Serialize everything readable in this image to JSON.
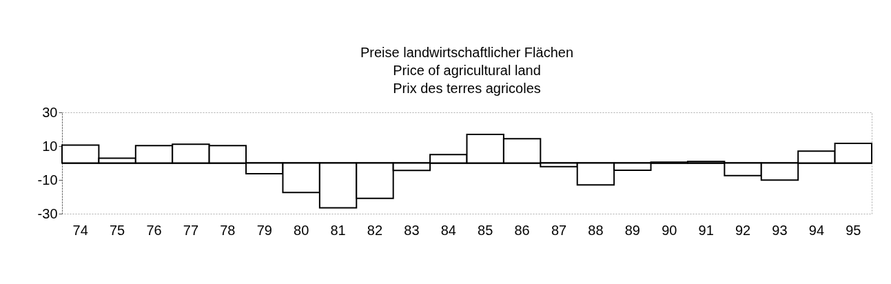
{
  "chart_data": {
    "type": "bar",
    "title": "Preise landwirtschaftlicher Flächen\nPrice of agricultural land\nPrix des terres agricoles",
    "categories": [
      "74",
      "75",
      "76",
      "77",
      "78",
      "79",
      "80",
      "81",
      "82",
      "83",
      "84",
      "85",
      "86",
      "87",
      "88",
      "89",
      "90",
      "91",
      "92",
      "93",
      "94",
      "95"
    ],
    "values": [
      10.6,
      2.9,
      10.3,
      11.1,
      10.3,
      -6.3,
      -17.4,
      -26.5,
      -20.9,
      -4.4,
      5.0,
      16.9,
      14.4,
      -2.1,
      -13.0,
      -4.3,
      0.5,
      0.9,
      -7.4,
      -10.1,
      7.0,
      11.6
    ],
    "color": "#ffffff",
    "ylim": [
      -30,
      30
    ],
    "yticks": [
      30,
      10,
      -10,
      -30
    ],
    "ref_lines": [
      {
        "axis": "y",
        "value": 0,
        "color": "#000000"
      }
    ],
    "grid": false
  }
}
